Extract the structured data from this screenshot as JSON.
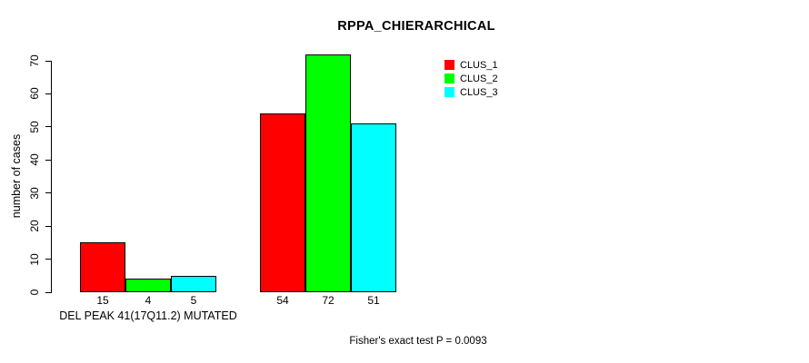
{
  "figure": {
    "background": "#ffffff",
    "text_color": "#000000"
  },
  "chart_data": {
    "type": "bar",
    "title": "RPPA_CHIERARCHICAL",
    "ylabel": "number of cases",
    "xlabel": "DEL PEAK 41(17Q11.2) MUTATED",
    "footnote": "Fisher's exact test P = 0.0093",
    "ylim": [
      0,
      70
    ],
    "yticks": [
      0,
      10,
      20,
      30,
      40,
      50,
      60,
      70
    ],
    "grid": false,
    "legend_position": "top-right-of-plot",
    "series": [
      {
        "name": "CLUS_1",
        "color": "#ff0000"
      },
      {
        "name": "CLUS_2",
        "color": "#00ff00"
      },
      {
        "name": "CLUS_3",
        "color": "#00ffff"
      }
    ],
    "groups": [
      {
        "label": "DEL PEAK 41(17Q11.2) MUTATED",
        "values": [
          15,
          4,
          5
        ]
      },
      {
        "label": "",
        "values": [
          54,
          72,
          51
        ]
      }
    ]
  }
}
